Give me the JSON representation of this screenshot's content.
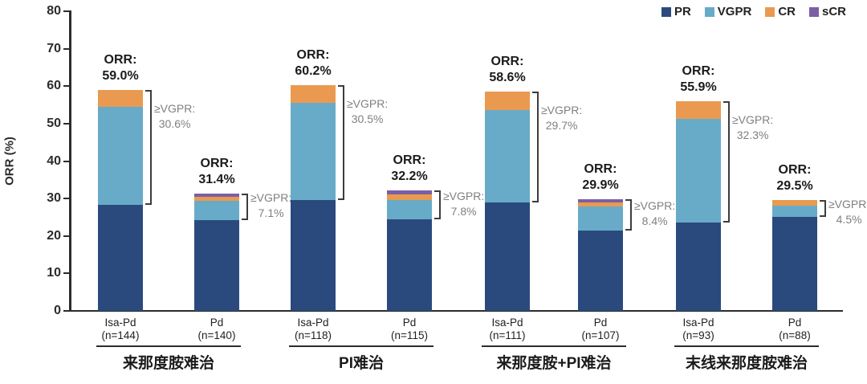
{
  "chart_data": {
    "type": "bar",
    "stacked": true,
    "title": "",
    "ylabel": "ORR (%)",
    "ylim": [
      0,
      80
    ],
    "yticks": [
      0,
      10,
      20,
      30,
      40,
      50,
      60,
      70,
      80
    ],
    "grid": false,
    "legend_position": "top-right",
    "legend": [
      "PR",
      "VGPR",
      "CR",
      "sCR"
    ],
    "colors": {
      "PR": "#2a4a7d",
      "VGPR": "#68abc8",
      "CR": "#e99a50",
      "sCR": "#7b5fa6",
      "axis": "#2c2c2c",
      "annotation_gray": "#808080"
    },
    "orr_prefix": "ORR:",
    "vgpr_prefix": "≥VGPR:",
    "groups": [
      {
        "label": "来那度胺难治",
        "bars": [
          {
            "arm": "Isa-Pd",
            "n": "(n=144)",
            "orr": "59.0%",
            "vgpr": "30.6%",
            "segments": {
              "PR": 28.4,
              "VGPR": 26.1,
              "CR": 4.5,
              "sCR": 0
            }
          },
          {
            "arm": "Pd",
            "n": "(n=140)",
            "orr": "31.4%",
            "vgpr": "7.1%",
            "segments": {
              "PR": 24.3,
              "VGPR": 5.1,
              "CR": 1.0,
              "sCR": 1.0
            }
          }
        ]
      },
      {
        "label": "PI难治",
        "bars": [
          {
            "arm": "Isa-Pd",
            "n": "(n=118)",
            "orr": "60.2%",
            "vgpr": "30.5%",
            "segments": {
              "PR": 29.7,
              "VGPR": 25.8,
              "CR": 4.7,
              "sCR": 0
            }
          },
          {
            "arm": "Pd",
            "n": "(n=115)",
            "orr": "32.2%",
            "vgpr": "7.8%",
            "segments": {
              "PR": 24.4,
              "VGPR": 5.3,
              "CR": 1.5,
              "sCR": 1.0
            }
          }
        ]
      },
      {
        "label": "来那度胺+PI难治",
        "bars": [
          {
            "arm": "Isa-Pd",
            "n": "(n=111)",
            "orr": "58.6%",
            "vgpr": "29.7%",
            "segments": {
              "PR": 28.9,
              "VGPR": 24.7,
              "CR": 5.0,
              "sCR": 0
            }
          },
          {
            "arm": "Pd",
            "n": "(n=107)",
            "orr": "29.9%",
            "vgpr": "8.4%",
            "segments": {
              "PR": 21.5,
              "VGPR": 6.4,
              "CR": 1.0,
              "sCR": 1.0
            }
          }
        ]
      },
      {
        "label": "末线来那度胺难治",
        "bars": [
          {
            "arm": "Isa-Pd",
            "n": "(n=93)",
            "orr": "55.9%",
            "vgpr": "32.3%",
            "segments": {
              "PR": 23.6,
              "VGPR": 27.7,
              "CR": 4.6,
              "sCR": 0
            }
          },
          {
            "arm": "Pd",
            "n": "(n=88)",
            "orr": "29.5%",
            "vgpr": "4.5%",
            "segments": {
              "PR": 25.0,
              "VGPR": 3.0,
              "CR": 1.5,
              "sCR": 0
            }
          }
        ]
      }
    ]
  }
}
